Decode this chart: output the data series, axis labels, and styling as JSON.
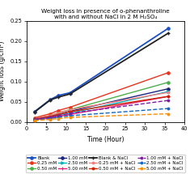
{
  "title": "Weight loss in presence of o-phenanthroline\nwith and without NaCl in 2 M H₂SO₄",
  "xlabel": "Time (Hour)",
  "ylabel": "Weight loss (g/cm²)",
  "xlim": [
    0,
    40
  ],
  "ylim": [
    0,
    0.25
  ],
  "time_points": [
    2,
    6,
    8,
    11,
    36
  ],
  "series": [
    {
      "label": "Blank",
      "color": "#1a4fc4",
      "lw": 1.3,
      "ls": "-",
      "marker": "o",
      "ms": 2.5,
      "mew": 0.8,
      "values": [
        0.025,
        0.055,
        0.065,
        0.072,
        0.232
      ]
    },
    {
      "label": "0.25 mM",
      "color": "#e8341c",
      "lw": 1.0,
      "ls": "-",
      "marker": "o",
      "ms": 2.5,
      "mew": 0.8,
      "values": [
        0.01,
        0.02,
        0.028,
        0.036,
        0.122
      ]
    },
    {
      "label": "0.50 mM",
      "color": "#4caf4c",
      "lw": 1.0,
      "ls": "-",
      "marker": "o",
      "ms": 2.5,
      "mew": 0.8,
      "values": [
        0.008,
        0.015,
        0.022,
        0.03,
        0.098
      ]
    },
    {
      "label": "1.00 mM",
      "color": "#1a237e",
      "lw": 1.0,
      "ls": "-",
      "marker": "o",
      "ms": 2.5,
      "mew": 0.8,
      "values": [
        0.007,
        0.013,
        0.018,
        0.026,
        0.082
      ]
    },
    {
      "label": "2.50 mM",
      "color": "#00b4c8",
      "lw": 1.0,
      "ls": "-",
      "marker": ">",
      "ms": 2.5,
      "mew": 0.8,
      "values": [
        0.006,
        0.011,
        0.015,
        0.021,
        0.075
      ]
    },
    {
      "label": "5.00 mM",
      "color": "#e91e7a",
      "lw": 1.0,
      "ls": "-",
      "marker": "+",
      "ms": 3.5,
      "mew": 0.8,
      "values": [
        0.005,
        0.009,
        0.013,
        0.018,
        0.063
      ]
    },
    {
      "label": "Blank & NaCl",
      "color": "#222222",
      "lw": 1.3,
      "ls": "-",
      "marker": "+",
      "ms": 3.5,
      "mew": 1.0,
      "values": [
        0.024,
        0.054,
        0.061,
        0.069,
        0.22
      ]
    },
    {
      "label": "0.25 mM + NaCl",
      "color": "#f08080",
      "lw": 1.0,
      "ls": "-",
      "marker": "o",
      "ms": 2.0,
      "mew": 0.8,
      "values": [
        0.008,
        0.016,
        0.022,
        0.03,
        0.073
      ]
    },
    {
      "label": "0.50 mM + NaCl",
      "color": "#cc2200",
      "lw": 1.0,
      "ls": "-",
      "marker": "o",
      "ms": 2.0,
      "mew": 0.8,
      "values": [
        0.007,
        0.013,
        0.018,
        0.025,
        0.063
      ]
    },
    {
      "label": "1.00 mM + NaCl",
      "color": "#7b1fa2",
      "lw": 1.0,
      "ls": "--",
      "marker": "o",
      "ms": 2.0,
      "mew": 0.8,
      "values": [
        0.006,
        0.011,
        0.015,
        0.021,
        0.053
      ]
    },
    {
      "label": "2.50 mM + NaCl",
      "color": "#1565c0",
      "lw": 1.0,
      "ls": "--",
      "marker": "o",
      "ms": 2.0,
      "mew": 0.8,
      "values": [
        0.004,
        0.008,
        0.011,
        0.015,
        0.033
      ]
    },
    {
      "label": "5.00 mM + NaCl",
      "color": "#ff8c00",
      "lw": 1.0,
      "ls": "--",
      "marker": "o",
      "ms": 2.0,
      "mew": 0.8,
      "values": [
        0.003,
        0.006,
        0.008,
        0.011,
        0.02
      ]
    }
  ],
  "legend_ncol": 4,
  "title_fontsize": 5.2,
  "label_fontsize": 5.5,
  "tick_fontsize": 4.8,
  "legend_fontsize": 4.0
}
